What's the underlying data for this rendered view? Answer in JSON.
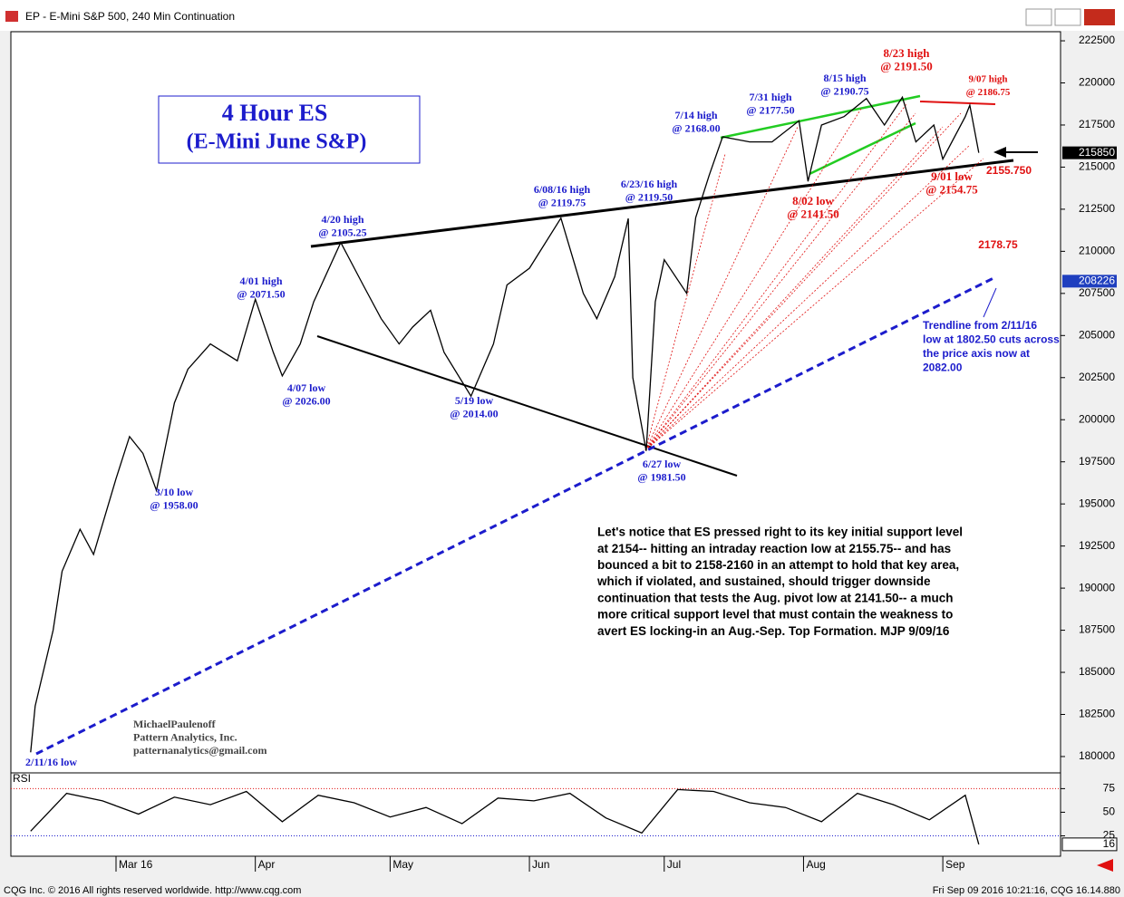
{
  "window": {
    "title": "EP - E-Mini S&P 500, 240 Min Continuation",
    "footer_left": "CQG Inc. © 2016 All rights reserved worldwide. http://www.cqg.com",
    "footer_right": "Fri Sep 09 2016 10:21:16, CQG 16.14.880"
  },
  "chart_data": [
    {
      "type": "line",
      "title": [
        "4 Hour ES",
        "(E-Mini June S&P)"
      ],
      "x": [
        42,
        43,
        47,
        49,
        53,
        56,
        61,
        64,
        67,
        70,
        74,
        77,
        82,
        88,
        92,
        96,
        98,
        102,
        105,
        111,
        116,
        120,
        124,
        127,
        131,
        134,
        140,
        145,
        148,
        153,
        160,
        165,
        168,
        172,
        175,
        176,
        179,
        181,
        183,
        188,
        190,
        193,
        196,
        202,
        207,
        213,
        215,
        218,
        223,
        228,
        232,
        236,
        239,
        243,
        245,
        250,
        251,
        253
      ],
      "series": [
        {
          "name": "E-Mini S&P 500",
          "color": "#000000",
          "values": [
            180250,
            183000,
            187500,
            191000,
            193500,
            192000,
            196500,
            199000,
            198000,
            195800,
            201000,
            203000,
            204500,
            203500,
            207150,
            204000,
            202600,
            204500,
            207000,
            210525,
            208000,
            206000,
            204500,
            205500,
            206500,
            204000,
            201400,
            204500,
            208000,
            209000,
            211975,
            207500,
            206000,
            208500,
            211950,
            202500,
            198150,
            207000,
            209500,
            207500,
            212000,
            214500,
            216800,
            216500,
            216500,
            217750,
            214150,
            217500,
            218000,
            219075,
            217500,
            219150,
            216500,
            217500,
            215475,
            218000,
            218675,
            215850
          ]
        }
      ],
      "xlim": [
        37.6,
        271.2
      ],
      "xticks": [
        {
          "value": 61,
          "label": "Mar 16"
        },
        {
          "value": 92,
          "label": "Apr"
        },
        {
          "value": 122,
          "label": "May"
        },
        {
          "value": 153,
          "label": "Jun"
        },
        {
          "value": 183,
          "label": "Jul"
        },
        {
          "value": 214,
          "label": "Aug"
        },
        {
          "value": 245,
          "label": "Sep"
        }
      ],
      "ylim": [
        179030,
        223040
      ],
      "yticks": [
        180000,
        182500,
        185000,
        187500,
        190000,
        192500,
        195000,
        197500,
        200000,
        202500,
        205000,
        207500,
        210000,
        212500,
        215000,
        217500,
        220000,
        222500
      ],
      "price_flags": [
        {
          "value": 215850,
          "color": "#000000"
        },
        {
          "value": 208226,
          "color": "#1f3fbf"
        }
      ],
      "annotations": [
        {
          "lines": [
            "4/20 high",
            "@ 2105.25"
          ],
          "color": "#1c1ccc"
        },
        {
          "lines": [
            "4/01 high",
            "@ 2071.50"
          ],
          "color": "#1c1ccc"
        },
        {
          "lines": [
            "4/07 low",
            "@ 2026.00"
          ],
          "color": "#1c1ccc"
        },
        {
          "lines": [
            "3/10 low",
            "@ 1958.00"
          ],
          "color": "#1c1ccc"
        },
        {
          "lines": [
            "5/19 low",
            "@ 2014.00"
          ],
          "color": "#1c1ccc"
        },
        {
          "lines": [
            "6/08/16 high",
            "@ 2119.75"
          ],
          "color": "#1c1ccc"
        },
        {
          "lines": [
            "6/23/16 high",
            "@ 2119.50"
          ],
          "color": "#1c1ccc"
        },
        {
          "lines": [
            "6/27 low",
            "@ 1981.50"
          ],
          "color": "#1c1ccc"
        },
        {
          "lines": [
            "7/14 high",
            "@ 2168.00"
          ],
          "color": "#1c1ccc"
        },
        {
          "lines": [
            "7/31 high",
            "@ 2177.50"
          ],
          "color": "#1c1ccc"
        },
        {
          "lines": [
            "8/15 high",
            "@ 2190.75"
          ],
          "color": "#1c1ccc"
        },
        {
          "lines": [
            "8/23 high",
            "@ 2191.50"
          ],
          "color": "#e01010"
        },
        {
          "lines": [
            "9/07 high",
            "@ 2186.75"
          ],
          "color": "#e01010"
        },
        {
          "lines": [
            "8/02 low",
            "@ 2141.50"
          ],
          "color": "#e01010"
        },
        {
          "lines": [
            "9/01 low",
            "@ 2154.75"
          ],
          "color": "#e01010"
        },
        {
          "lines": [
            "2/11/16 low"
          ],
          "color": "#1c1ccc"
        },
        {
          "lines": [
            "2155.750"
          ],
          "color": "#e01010"
        },
        {
          "lines": [
            "2178.75"
          ],
          "color": "#e01010"
        },
        {
          "lines": [
            "Trendline from 2/11/16",
            "low at 1802.50 cuts across",
            "the price axis now at",
            "2082.00"
          ],
          "color": "#1c1ccc"
        },
        {
          "lines": [
            "MichaelPaulenoff",
            "Pattern Analytics, Inc.",
            "patternanalytics@gmail.com"
          ],
          "color": "#444444"
        }
      ],
      "commentary": [
        "Let's notice that ES pressed right to its key initial support level",
        "at 2154-- hitting an intraday reaction low at 2155.75-- and has",
        "bounced a bit to 2158-2160 in an attempt to hold that key area,",
        "which if violated, and sustained, should trigger downside",
        "continuation that tests the Aug. pivot low at 2141.50-- a much",
        "more critical support level that must contain the weakness to",
        "avert ES locking-in an Aug.-Sep. Top Formation. MJP 9/09/16"
      ]
    },
    {
      "type": "line",
      "title": "RSI",
      "x": [
        42,
        50,
        58,
        66,
        74,
        82,
        90,
        98,
        106,
        114,
        122,
        130,
        138,
        146,
        154,
        162,
        170,
        178,
        186,
        194,
        202,
        210,
        218,
        226,
        234,
        242,
        250,
        253
      ],
      "series": [
        {
          "name": "RSI",
          "color": "#000000",
          "values": [
            30,
            70,
            62,
            48,
            66,
            58,
            72,
            40,
            68,
            60,
            45,
            55,
            38,
            65,
            62,
            70,
            44,
            28,
            74,
            72,
            60,
            55,
            40,
            70,
            58,
            42,
            68,
            16
          ]
        }
      ],
      "xlim": [
        37.6,
        271.2
      ],
      "ylim": [
        3.4,
        91.7
      ],
      "yticks": [
        25,
        50,
        75
      ],
      "last_flag": 16
    }
  ]
}
